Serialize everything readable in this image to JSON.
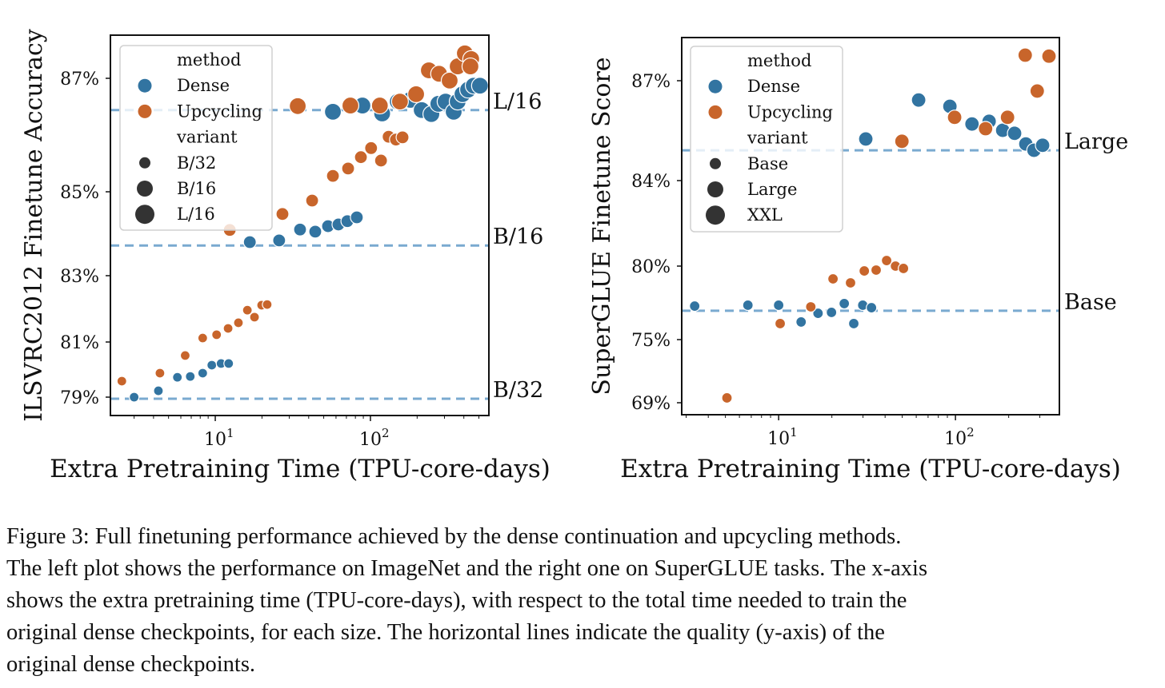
{
  "colors": {
    "dense": "#3274a1",
    "upcycling": "#c8652b",
    "baseline": "#7aaad0"
  },
  "chart_data": [
    {
      "type": "scatter",
      "ylabel": "ILSVRC2012 Finetune Accuracy",
      "xlabel": "Extra Pretraining Time (TPU-core-days)",
      "xscale": "log",
      "xlim": [
        2.11,
        580
      ],
      "ylim": [
        78.33,
        87.76
      ],
      "yticks": [
        {
          "value": 79,
          "label": "79%"
        },
        {
          "value": 81,
          "label": "81%"
        },
        {
          "value": 83,
          "label": "83%"
        },
        {
          "value": 85,
          "label": "85%"
        },
        {
          "value": 87,
          "label": "87%"
        }
      ],
      "xticks": [
        {
          "value": 10,
          "base": "10",
          "exp": "1"
        },
        {
          "value": 100,
          "base": "10",
          "exp": "2"
        }
      ],
      "legend": {
        "placement": "upper-left",
        "entries": [
          {
            "kind": "title",
            "label": "method"
          },
          {
            "kind": "color",
            "label": "Dense",
            "method": "dense"
          },
          {
            "kind": "color",
            "label": "Upcycling",
            "method": "upcycling"
          },
          {
            "kind": "title",
            "label": "variant"
          },
          {
            "kind": "size",
            "label": "B/32",
            "size": 0
          },
          {
            "kind": "size",
            "label": "B/16",
            "size": 1
          },
          {
            "kind": "size",
            "label": "L/16",
            "size": 2
          }
        ]
      },
      "baselines": [
        {
          "label": "L/16",
          "y": 86.44
        },
        {
          "label": "B/16",
          "y": 83.72
        },
        {
          "label": "B/32",
          "y": 78.94
        }
      ],
      "series": [
        {
          "method": "dense",
          "variant": "B/32",
          "size": 0,
          "points": [
            [
              3.0,
              79.0
            ],
            [
              4.3,
              79.23
            ],
            [
              5.7,
              79.72
            ],
            [
              6.9,
              79.75
            ],
            [
              8.3,
              79.87
            ],
            [
              9.5,
              80.16
            ],
            [
              10.9,
              80.22
            ],
            [
              12.2,
              80.22
            ]
          ]
        },
        {
          "method": "upcycling",
          "variant": "B/32",
          "size": 0,
          "points": [
            [
              2.5,
              79.58
            ],
            [
              4.4,
              79.87
            ],
            [
              6.4,
              80.51
            ],
            [
              8.3,
              81.12
            ],
            [
              10.2,
              81.22
            ],
            [
              12.1,
              81.41
            ],
            [
              14.1,
              81.58
            ],
            [
              16.1,
              81.96
            ],
            [
              17.9,
              81.75
            ],
            [
              19.9,
              82.11
            ],
            [
              21.6,
              82.13
            ]
          ]
        },
        {
          "method": "dense",
          "variant": "B/16",
          "size": 1,
          "points": [
            [
              16.7,
              83.8
            ],
            [
              25.8,
              83.84
            ],
            [
              35.2,
              84.1
            ],
            [
              44.1,
              84.05
            ],
            [
              53.3,
              84.18
            ],
            [
              62.2,
              84.22
            ],
            [
              71.0,
              84.3
            ],
            [
              81.7,
              84.39
            ]
          ]
        },
        {
          "method": "upcycling",
          "variant": "B/16",
          "size": 1,
          "points": [
            [
              12.4,
              84.09
            ],
            [
              27.1,
              84.47
            ],
            [
              42.1,
              84.79
            ],
            [
              57.3,
              85.28
            ],
            [
              71.8,
              85.41
            ],
            [
              86.8,
              85.61
            ],
            [
              101,
              85.77
            ],
            [
              117,
              85.55
            ],
            [
              131,
              85.97
            ],
            [
              146,
              85.92
            ],
            [
              161,
              85.96
            ]
          ]
        },
        {
          "method": "dense",
          "variant": "L/16",
          "size": 2,
          "points": [
            [
              57.3,
              86.41
            ],
            [
              88.8,
              86.52
            ],
            [
              119,
              86.38
            ],
            [
              150,
              86.59
            ],
            [
              181,
              86.62
            ],
            [
              214,
              86.44
            ],
            [
              247,
              86.37
            ],
            [
              274,
              86.55
            ],
            [
              305,
              86.59
            ],
            [
              344,
              86.41
            ],
            [
              365,
              86.59
            ],
            [
              392,
              86.72
            ],
            [
              426,
              86.8
            ],
            [
              463,
              86.87
            ],
            [
              508,
              86.87
            ]
          ]
        },
        {
          "method": "upcycling",
          "variant": "L/16",
          "size": 2,
          "points": [
            [
              34.0,
              86.51
            ],
            [
              74.3,
              86.52
            ],
            [
              115,
              86.52
            ],
            [
              155,
              86.59
            ],
            [
              197,
              86.72
            ],
            [
              238,
              87.14
            ],
            [
              277,
              87.08
            ],
            [
              324,
              86.96
            ],
            [
              365,
              87.21
            ],
            [
              406,
              87.44
            ],
            [
              446,
              87.34
            ],
            [
              441,
              87.21
            ]
          ]
        }
      ]
    },
    {
      "type": "scatter",
      "ylabel": "SuperGLUE Finetune Score",
      "xlabel": "Extra Pretraining Time (TPU-core-days)",
      "xscale": "log",
      "xlim": [
        2.83,
        387
      ],
      "ylim": [
        67.86,
        88.3
      ],
      "yticks": [
        {
          "value": 69,
          "label": "69%"
        },
        {
          "value": 75,
          "label": "75%"
        },
        {
          "value": 80,
          "label": "80%"
        },
        {
          "value": 84,
          "label": "84%"
        },
        {
          "value": 87,
          "label": "87%"
        }
      ],
      "xticks": [
        {
          "value": 10,
          "base": "10",
          "exp": "1"
        },
        {
          "value": 100,
          "base": "10",
          "exp": "2"
        }
      ],
      "legend": {
        "placement": "upper-left",
        "entries": [
          {
            "kind": "title",
            "label": "method"
          },
          {
            "kind": "color",
            "label": "Dense",
            "method": "dense"
          },
          {
            "kind": "color",
            "label": "Upcycling",
            "method": "upcycling"
          },
          {
            "kind": "title",
            "label": "variant"
          },
          {
            "kind": "size",
            "label": "Base",
            "size": 0
          },
          {
            "kind": "size",
            "label": "Large",
            "size": 1
          },
          {
            "kind": "size",
            "label": "XXL",
            "size": 2
          }
        ]
      },
      "baselines": [
        {
          "label": "Large",
          "y": 84.91
        },
        {
          "label": "Base",
          "y": 76.96
        }
      ],
      "series": [
        {
          "method": "dense",
          "variant": "Base",
          "size": 0,
          "points": [
            [
              3.35,
              77.28
            ],
            [
              6.7,
              77.34
            ],
            [
              10,
              77.34
            ],
            [
              13.4,
              76.2
            ],
            [
              16.7,
              76.79
            ],
            [
              19.9,
              76.85
            ],
            [
              23.5,
              77.45
            ],
            [
              26.6,
              76.09
            ],
            [
              29.9,
              77.34
            ],
            [
              33.5,
              77.17
            ]
          ]
        },
        {
          "method": "upcycling",
          "variant": "Base",
          "size": 0,
          "points": [
            [
              5.1,
              69.46
            ],
            [
              10.2,
              76.09
            ],
            [
              15.2,
              77.23
            ],
            [
              20.3,
              79.13
            ],
            [
              25.5,
              78.86
            ],
            [
              30.5,
              79.67
            ],
            [
              35.6,
              79.73
            ],
            [
              40.8,
              80.26
            ],
            [
              45.8,
              80.0
            ],
            [
              50.8,
              79.84
            ]
          ]
        },
        {
          "method": "dense",
          "variant": "Large",
          "size": 1,
          "points": [
            [
              31.1,
              85.25
            ],
            [
              61.9,
              86.42
            ],
            [
              93,
              86.23
            ],
            [
              124,
              85.7
            ],
            [
              155,
              85.78
            ],
            [
              185,
              85.51
            ],
            [
              216,
              85.42
            ],
            [
              250,
              85.1
            ],
            [
              278,
              84.91
            ],
            [
              311,
              85.06
            ]
          ]
        },
        {
          "method": "upcycling",
          "variant": "Large",
          "size": 1,
          "points": [
            [
              49.8,
              85.18
            ],
            [
              98.9,
              85.9
            ],
            [
              148,
              85.56
            ],
            [
              197,
              85.9
            ],
            [
              248,
              87.77
            ],
            [
              290,
              86.69
            ],
            [
              338,
              87.74
            ]
          ]
        }
      ]
    }
  ],
  "caption": {
    "lines": [
      "Figure 3: Full finetuning performance achieved by the dense continuation and upcycling methods.",
      "The left plot shows the performance on ImageNet and the right one on SuperGLUE tasks. The x-axis",
      "shows the extra pretraining time (TPU-core-days), with respect to the total time needed to train the",
      "original dense checkpoints, for each size. The horizontal lines indicate the quality (y-axis) of the",
      "original dense checkpoints."
    ]
  }
}
